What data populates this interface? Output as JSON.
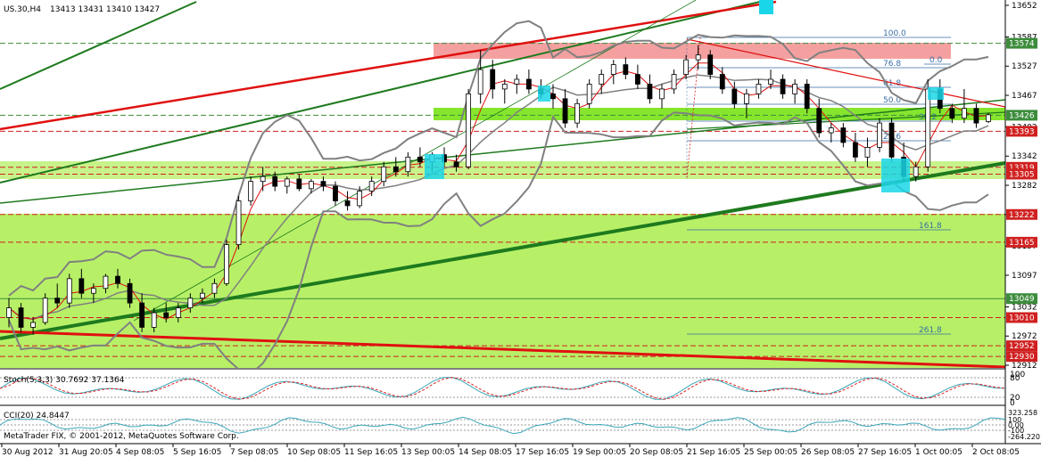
{
  "symbol_header": {
    "symbol": "US.30,H4",
    "ohlc": "13413 13431 13410 13427"
  },
  "price_axis": {
    "ticks": [
      "13652",
      "13587",
      "13527",
      "13467",
      "13402",
      "13342",
      "13282",
      "13222",
      "13157",
      "13097",
      "13032",
      "12972",
      "12912"
    ]
  },
  "price_tags": [
    {
      "value": "13574",
      "color": "#3c8c3c"
    },
    {
      "value": "13426",
      "color": "#3c8c3c"
    },
    {
      "value": "13393",
      "color": "#d02020"
    },
    {
      "value": "13319",
      "color": "#d02020"
    },
    {
      "value": "13305",
      "color": "#d02020"
    },
    {
      "value": "13222",
      "color": "#d02020"
    },
    {
      "value": "13165",
      "color": "#d02020"
    },
    {
      "value": "13049",
      "color": "#3c8c3c"
    },
    {
      "value": "13010",
      "color": "#d02020"
    },
    {
      "value": "12952",
      "color": "#d02020"
    },
    {
      "value": "12930",
      "color": "#d02020"
    }
  ],
  "fib_levels": [
    {
      "label": "100.0"
    },
    {
      "label": "76.8"
    },
    {
      "label": "61.8"
    },
    {
      "label": "50.0"
    },
    {
      "label": "38.2"
    },
    {
      "label": "23.6"
    },
    {
      "label": "0.0"
    },
    {
      "label": "161.8"
    },
    {
      "label": "261.8"
    }
  ],
  "time_axis": {
    "ticks": [
      "30 Aug 2012",
      "31 Aug 20:05",
      "4 Sep 08:05",
      "5 Sep 16:05",
      "7 Sep 08:05",
      "10 Sep 08:05",
      "11 Sep 16:05",
      "13 Sep 00:05",
      "14 Sep 08:05",
      "17 Sep 16:05",
      "19 Sep 00:05",
      "20 Sep 08:05",
      "21 Sep 16:05",
      "25 Sep 00:05",
      "26 Sep 08:05",
      "27 Sep 16:05",
      "1 Oct 00:05",
      "2 Oct 08:05"
    ]
  },
  "stoch": {
    "label": "Stoch(5,3,3) 30.7692 37.1364",
    "ticks": [
      "100",
      "80",
      "20",
      "0"
    ]
  },
  "cci": {
    "label": "CCI(20) 24.8447",
    "ticks": [
      "323.258",
      "100",
      "0.00",
      "-100",
      "-264.220"
    ]
  },
  "copyright": "MetaTrader FIX, © 2001-2012, MetaQuotes Software Corp.",
  "colors": {
    "zone_green": "#b7f067",
    "zone_bright": "#86e52d",
    "zone_pink": "#f4a0a0",
    "cyan": "#1ad6e8",
    "support_dark": "#1e7a1e",
    "resistance_red": "#e01010",
    "band": "#808080",
    "fib": "#3a6ea5"
  },
  "chart_data": {
    "type": "candlestick",
    "instrument": "US.30",
    "timeframe": "H4",
    "y_range": [
      12912,
      13652
    ],
    "candles": [
      {
        "o": 13010,
        "h": 13050,
        "l": 12990,
        "c": 13030
      },
      {
        "o": 13030,
        "h": 13040,
        "l": 12980,
        "c": 12990
      },
      {
        "o": 12990,
        "h": 13010,
        "l": 12975,
        "c": 13000
      },
      {
        "o": 13000,
        "h": 13060,
        "l": 12995,
        "c": 13050
      },
      {
        "o": 13050,
        "h": 13080,
        "l": 13030,
        "c": 13040
      },
      {
        "o": 13040,
        "h": 13100,
        "l": 13030,
        "c": 13090
      },
      {
        "o": 13090,
        "h": 13110,
        "l": 13050,
        "c": 13060
      },
      {
        "o": 13060,
        "h": 13080,
        "l": 13040,
        "c": 13070
      },
      {
        "o": 13070,
        "h": 13100,
        "l": 13060,
        "c": 13095
      },
      {
        "o": 13095,
        "h": 13110,
        "l": 13070,
        "c": 13080
      },
      {
        "o": 13080,
        "h": 13090,
        "l": 13030,
        "c": 13040
      },
      {
        "o": 13040,
        "h": 13060,
        "l": 12980,
        "c": 12990
      },
      {
        "o": 12990,
        "h": 13030,
        "l": 12980,
        "c": 13020
      },
      {
        "o": 13020,
        "h": 13040,
        "l": 13000,
        "c": 13010
      },
      {
        "o": 13010,
        "h": 13040,
        "l": 13000,
        "c": 13030
      },
      {
        "o": 13030,
        "h": 13060,
        "l": 13020,
        "c": 13050
      },
      {
        "o": 13050,
        "h": 13070,
        "l": 13040,
        "c": 13060
      },
      {
        "o": 13060,
        "h": 13090,
        "l": 13050,
        "c": 13080
      },
      {
        "o": 13080,
        "h": 13170,
        "l": 13075,
        "c": 13160
      },
      {
        "o": 13160,
        "h": 13260,
        "l": 13150,
        "c": 13250
      },
      {
        "o": 13250,
        "h": 13300,
        "l": 13240,
        "c": 13290
      },
      {
        "o": 13290,
        "h": 13320,
        "l": 13270,
        "c": 13300
      },
      {
        "o": 13300,
        "h": 13310,
        "l": 13270,
        "c": 13280
      },
      {
        "o": 13280,
        "h": 13300,
        "l": 13265,
        "c": 13295
      },
      {
        "o": 13295,
        "h": 13305,
        "l": 13270,
        "c": 13275
      },
      {
        "o": 13275,
        "h": 13295,
        "l": 13265,
        "c": 13290
      },
      {
        "o": 13290,
        "h": 13300,
        "l": 13270,
        "c": 13280
      },
      {
        "o": 13280,
        "h": 13290,
        "l": 13240,
        "c": 13250
      },
      {
        "o": 13250,
        "h": 13270,
        "l": 13230,
        "c": 13240
      },
      {
        "o": 13240,
        "h": 13280,
        "l": 13235,
        "c": 13270
      },
      {
        "o": 13270,
        "h": 13300,
        "l": 13260,
        "c": 13290
      },
      {
        "o": 13290,
        "h": 13330,
        "l": 13280,
        "c": 13320
      },
      {
        "o": 13320,
        "h": 13340,
        "l": 13300,
        "c": 13310
      },
      {
        "o": 13310,
        "h": 13350,
        "l": 13300,
        "c": 13340
      },
      {
        "o": 13340,
        "h": 13360,
        "l": 13320,
        "c": 13330
      },
      {
        "o": 13330,
        "h": 13350,
        "l": 13310,
        "c": 13345
      },
      {
        "o": 13345,
        "h": 13360,
        "l": 13320,
        "c": 13330
      },
      {
        "o": 13330,
        "h": 13345,
        "l": 13310,
        "c": 13320
      },
      {
        "o": 13320,
        "h": 13480,
        "l": 13315,
        "c": 13470
      },
      {
        "o": 13470,
        "h": 13560,
        "l": 13450,
        "c": 13520
      },
      {
        "o": 13520,
        "h": 13540,
        "l": 13460,
        "c": 13480
      },
      {
        "o": 13480,
        "h": 13500,
        "l": 13450,
        "c": 13490
      },
      {
        "o": 13490,
        "h": 13510,
        "l": 13470,
        "c": 13500
      },
      {
        "o": 13500,
        "h": 13520,
        "l": 13470,
        "c": 13480
      },
      {
        "o": 13480,
        "h": 13500,
        "l": 13460,
        "c": 13470
      },
      {
        "o": 13470,
        "h": 13490,
        "l": 13440,
        "c": 13460
      },
      {
        "o": 13460,
        "h": 13480,
        "l": 13400,
        "c": 13410
      },
      {
        "o": 13410,
        "h": 13460,
        "l": 13400,
        "c": 13450
      },
      {
        "o": 13450,
        "h": 13500,
        "l": 13440,
        "c": 13490
      },
      {
        "o": 13490,
        "h": 13520,
        "l": 13470,
        "c": 13510
      },
      {
        "o": 13510,
        "h": 13540,
        "l": 13490,
        "c": 13530
      },
      {
        "o": 13530,
        "h": 13545,
        "l": 13500,
        "c": 13510
      },
      {
        "o": 13510,
        "h": 13530,
        "l": 13480,
        "c": 13490
      },
      {
        "o": 13490,
        "h": 13510,
        "l": 13450,
        "c": 13460
      },
      {
        "o": 13460,
        "h": 13490,
        "l": 13440,
        "c": 13480
      },
      {
        "o": 13480,
        "h": 13520,
        "l": 13470,
        "c": 13510
      },
      {
        "o": 13510,
        "h": 13550,
        "l": 13500,
        "c": 13540
      },
      {
        "o": 13540,
        "h": 13570,
        "l": 13520,
        "c": 13550
      },
      {
        "o": 13550,
        "h": 13560,
        "l": 13500,
        "c": 13510
      },
      {
        "o": 13510,
        "h": 13525,
        "l": 13470,
        "c": 13480
      },
      {
        "o": 13480,
        "h": 13495,
        "l": 13440,
        "c": 13450
      },
      {
        "o": 13450,
        "h": 13480,
        "l": 13420,
        "c": 13470
      },
      {
        "o": 13470,
        "h": 13500,
        "l": 13460,
        "c": 13490
      },
      {
        "o": 13490,
        "h": 13520,
        "l": 13480,
        "c": 13500
      },
      {
        "o": 13500,
        "h": 13510,
        "l": 13460,
        "c": 13470
      },
      {
        "o": 13470,
        "h": 13500,
        "l": 13450,
        "c": 13490
      },
      {
        "o": 13490,
        "h": 13500,
        "l": 13430,
        "c": 13440
      },
      {
        "o": 13440,
        "h": 13460,
        "l": 13380,
        "c": 13390
      },
      {
        "o": 13390,
        "h": 13410,
        "l": 13370,
        "c": 13400
      },
      {
        "o": 13400,
        "h": 13410,
        "l": 13360,
        "c": 13370
      },
      {
        "o": 13370,
        "h": 13390,
        "l": 13330,
        "c": 13340
      },
      {
        "o": 13340,
        "h": 13380,
        "l": 13320,
        "c": 13360
      },
      {
        "o": 13360,
        "h": 13420,
        "l": 13350,
        "c": 13410
      },
      {
        "o": 13410,
        "h": 13420,
        "l": 13330,
        "c": 13340
      },
      {
        "o": 13340,
        "h": 13370,
        "l": 13290,
        "c": 13300
      },
      {
        "o": 13300,
        "h": 13330,
        "l": 13290,
        "c": 13320
      },
      {
        "o": 13320,
        "h": 13500,
        "l": 13310,
        "c": 13480
      },
      {
        "o": 13480,
        "h": 13500,
        "l": 13430,
        "c": 13440
      },
      {
        "o": 13440,
        "h": 13450,
        "l": 13410,
        "c": 13420
      },
      {
        "o": 13420,
        "h": 13480,
        "l": 13410,
        "c": 13440
      },
      {
        "o": 13440,
        "h": 13450,
        "l": 13400,
        "c": 13410
      },
      {
        "o": 13413,
        "h": 13431,
        "l": 13410,
        "c": 13427
      }
    ]
  }
}
